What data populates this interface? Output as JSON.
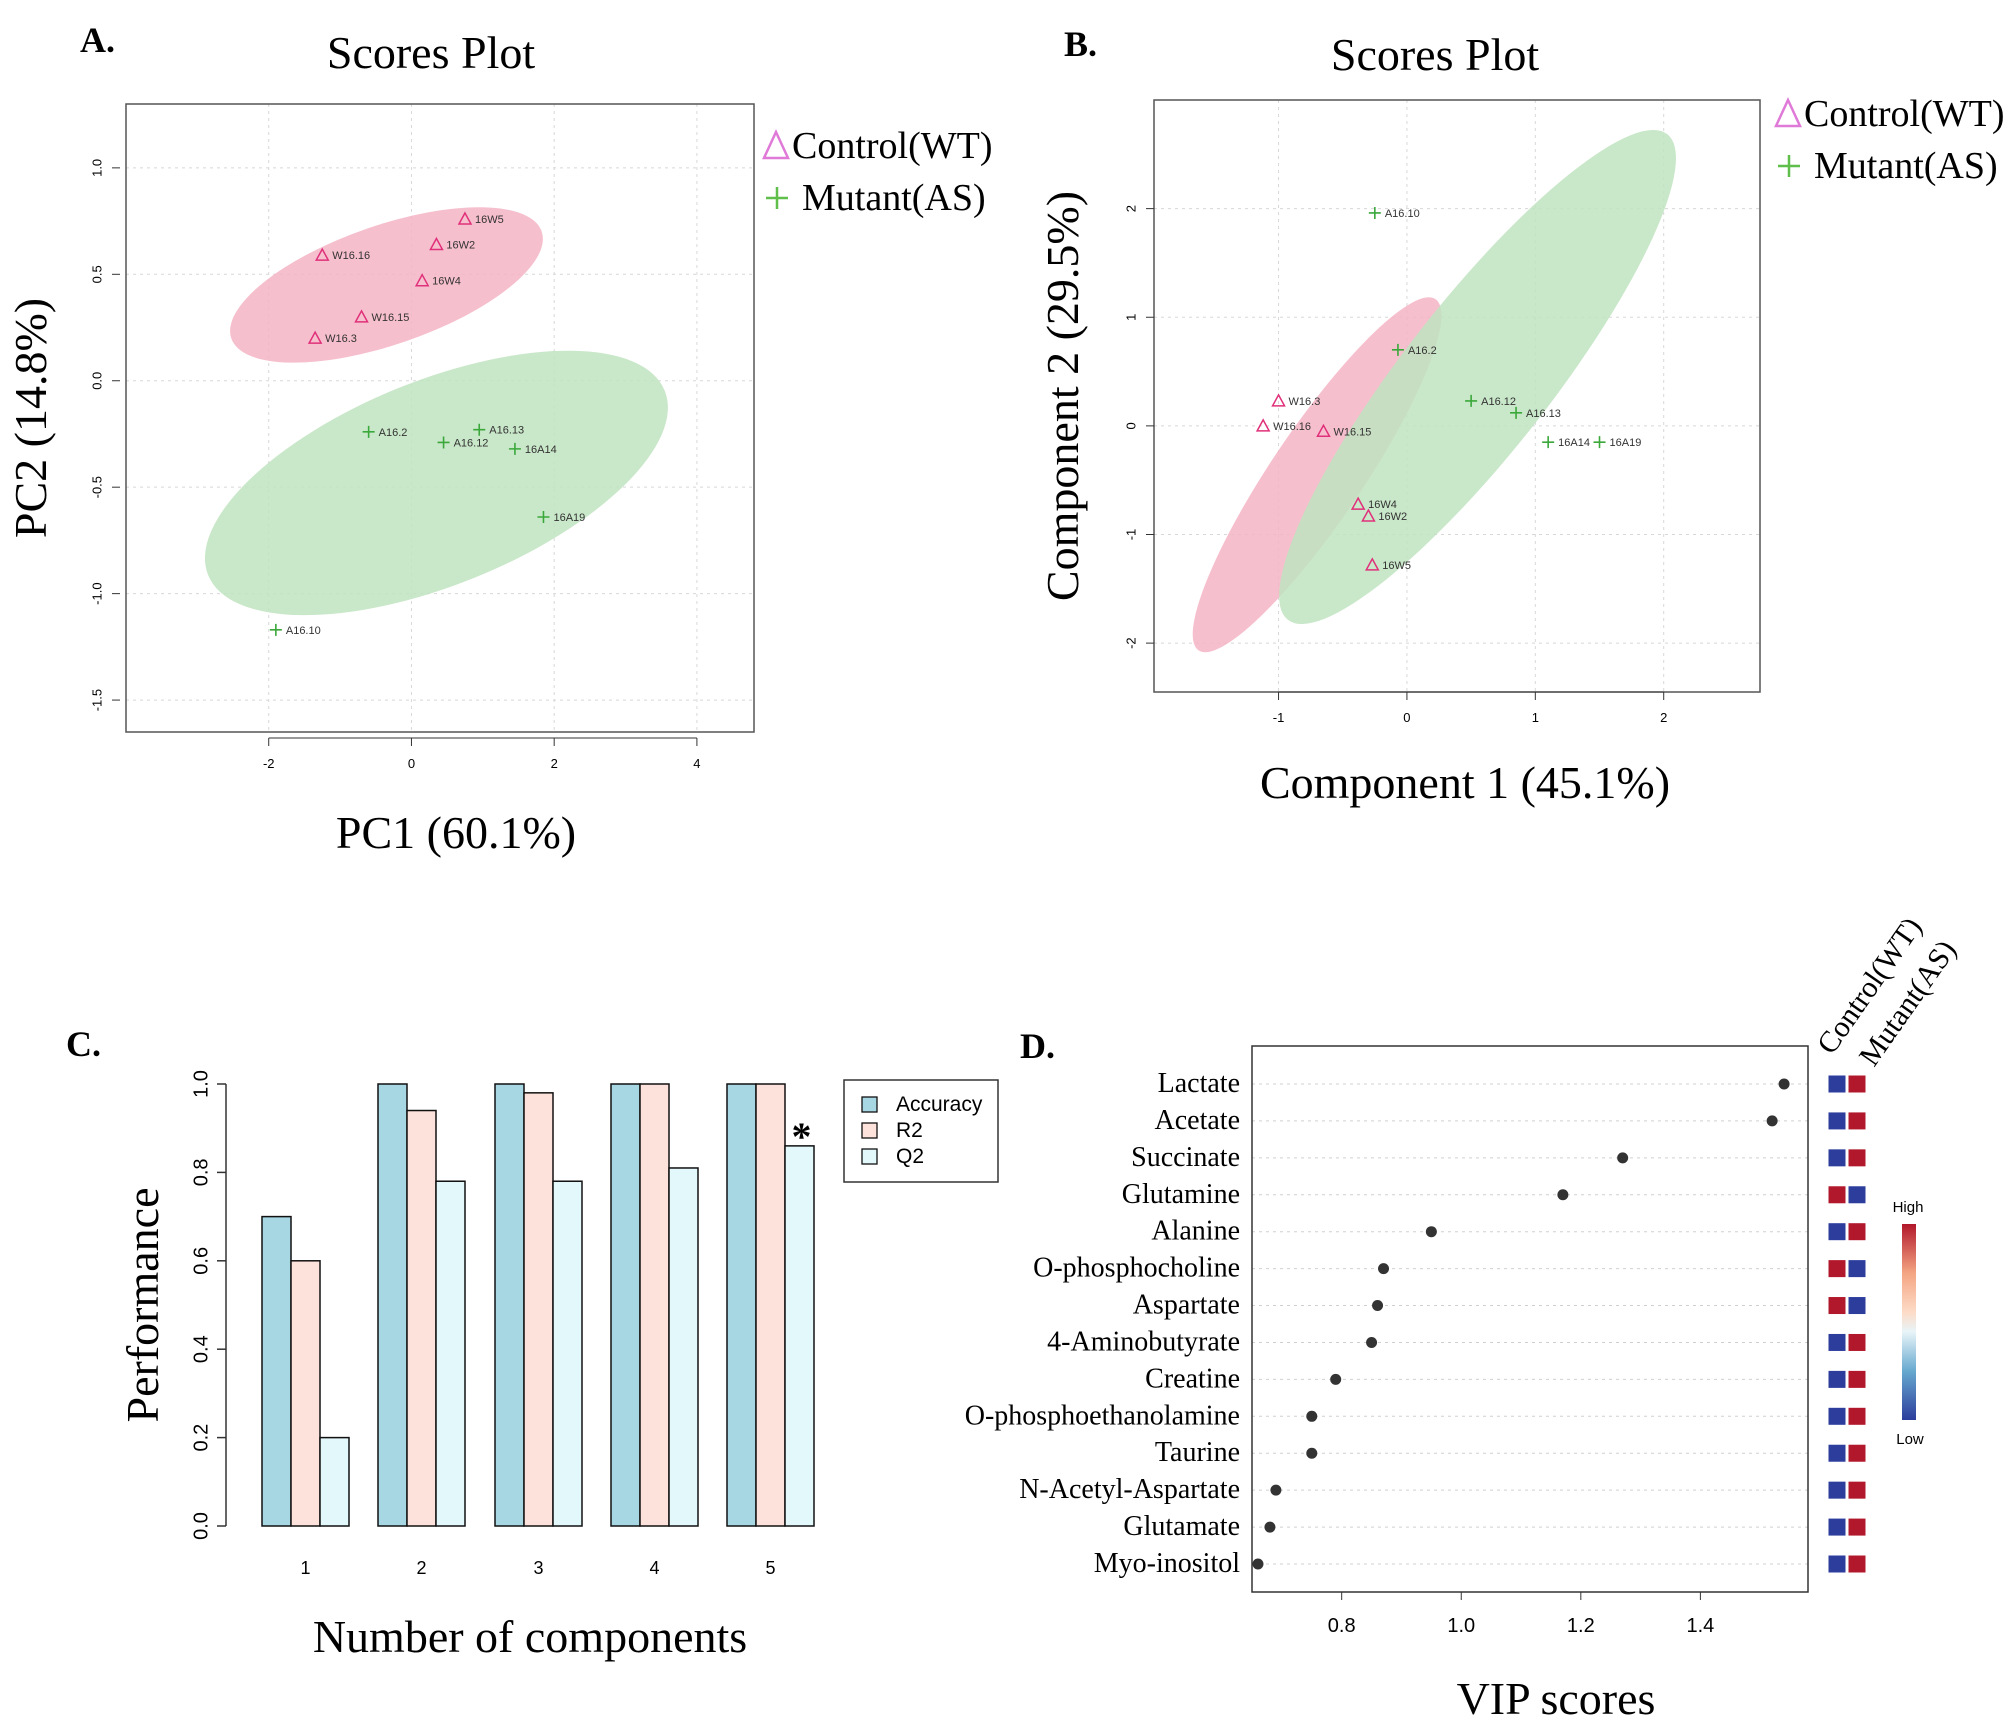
{
  "panels": {
    "a": {
      "label": "A."
    },
    "b": {
      "label": "B."
    },
    "c": {
      "label": "C."
    },
    "d": {
      "label": "D."
    }
  },
  "colors": {
    "control": "#e0307a",
    "control_ellipse": "#f4b4c4",
    "mutant": "#3aa83a",
    "mutant_ellipse": "#bfe3bf",
    "legend_triangle": "#e07ad8",
    "legend_plus": "#5fbf4a",
    "bar_accuracy": "#a7d7e2",
    "bar_r2": "#fde2dc",
    "bar_q2": "#e2f8fb",
    "heat_high": "#b2182b",
    "heat_low": "#2c3d9c"
  },
  "chart_data": [
    {
      "type": "scatter",
      "title": "Scores Plot",
      "xlabel": "PC1 (60.1%)",
      "ylabel": "PC2 (14.8%)",
      "xlim": [
        -4,
        4.8
      ],
      "ylim": [
        -1.65,
        1.3
      ],
      "xticks": [
        -2,
        0,
        2,
        4
      ],
      "yticks": [
        -1.5,
        -1.0,
        -0.5,
        0.0,
        0.5,
        1.0
      ],
      "xtick_labels": [
        "-2",
        "0",
        "2",
        "4"
      ],
      "ytick_labels": [
        "-1.5",
        "-1.0",
        "-0.5",
        "0.0",
        "0.5",
        "1.0"
      ],
      "grid": true,
      "legend": {
        "placement": "outside-right",
        "entries": [
          "Control(WT)",
          "Mutant(AS)"
        ]
      },
      "series": [
        {
          "name": "Control(WT)",
          "marker": "triangle",
          "points": [
            {
              "label": "16W5",
              "x": 0.75,
              "y": 0.76
            },
            {
              "label": "16W2",
              "x": 0.35,
              "y": 0.64
            },
            {
              "label": "W16.16",
              "x": -1.25,
              "y": 0.59
            },
            {
              "label": "16W4",
              "x": 0.15,
              "y": 0.47
            },
            {
              "label": "W16.15",
              "x": -0.7,
              "y": 0.3
            },
            {
              "label": "W16.3",
              "x": -1.35,
              "y": 0.2
            }
          ],
          "ellipse": {
            "cx": -0.35,
            "cy": 0.45,
            "rx": 2.3,
            "ry": 0.28,
            "angle_deg": -19
          }
        },
        {
          "name": "Mutant(AS)",
          "marker": "plus",
          "points": [
            {
              "label": "A16.2",
              "x": -0.6,
              "y": -0.24
            },
            {
              "label": "A16.13",
              "x": 0.95,
              "y": -0.23
            },
            {
              "label": "A16.12",
              "x": 0.45,
              "y": -0.29
            },
            {
              "label": "16A14",
              "x": 1.45,
              "y": -0.32
            },
            {
              "label": "16A19",
              "x": 1.85,
              "y": -0.64
            },
            {
              "label": "A16.10",
              "x": -1.9,
              "y": -1.17
            }
          ],
          "ellipse": {
            "cx": 0.35,
            "cy": -0.48,
            "rx": 3.45,
            "ry": 0.48,
            "angle_deg": -22
          }
        }
      ]
    },
    {
      "type": "scatter",
      "title": "Scores Plot",
      "xlabel": "Component 1 (45.1%)",
      "ylabel": "Component 2 (29.5%)",
      "xlim": [
        -1.97,
        2.75
      ],
      "ylim": [
        -2.45,
        3.0
      ],
      "xticks": [
        -1,
        0,
        1,
        2
      ],
      "yticks": [
        -2,
        -1,
        0,
        1,
        2
      ],
      "xtick_labels": [
        "-1",
        "0",
        "1",
        "2"
      ],
      "ytick_labels": [
        "-2",
        "-1",
        "0",
        "1",
        "2"
      ],
      "grid": true,
      "legend": {
        "placement": "outside-right",
        "entries": [
          "Control(WT)",
          "Mutant(AS)"
        ]
      },
      "series": [
        {
          "name": "Control(WT)",
          "marker": "triangle",
          "points": [
            {
              "label": "W16.3",
              "x": -1.0,
              "y": 0.23
            },
            {
              "label": "W16.16",
              "x": -1.12,
              "y": 0.0
            },
            {
              "label": "W16.15",
              "x": -0.65,
              "y": -0.05
            },
            {
              "label": "16W4",
              "x": -0.38,
              "y": -0.72
            },
            {
              "label": "16W2",
              "x": -0.3,
              "y": -0.83
            },
            {
              "label": "16W5",
              "x": -0.27,
              "y": -1.28
            }
          ],
          "ellipse": {
            "cx": -0.7,
            "cy": -0.45,
            "rx": 1.65,
            "ry": 0.42,
            "angle_deg": -56
          }
        },
        {
          "name": "Mutant(AS)",
          "marker": "plus",
          "points": [
            {
              "label": "A16.10",
              "x": -0.25,
              "y": 1.96
            },
            {
              "label": "A16.2",
              "x": -0.07,
              "y": 0.7
            },
            {
              "label": "A16.12",
              "x": 0.5,
              "y": 0.23
            },
            {
              "label": "A16.13",
              "x": 0.85,
              "y": 0.12
            },
            {
              "label": "16A14",
              "x": 1.1,
              "y": -0.15
            },
            {
              "label": "16A19",
              "x": 1.5,
              "y": -0.15
            }
          ],
          "ellipse": {
            "cx": 0.55,
            "cy": 0.45,
            "rx": 2.4,
            "ry": 0.68,
            "angle_deg": -52
          }
        }
      ]
    },
    {
      "type": "bar",
      "xlabel": "Number of components",
      "ylabel": "Performance",
      "categories": [
        "1",
        "2",
        "3",
        "4",
        "5"
      ],
      "ylim": [
        0,
        1.0
      ],
      "yticks": [
        0.0,
        0.2,
        0.4,
        0.6,
        0.8,
        1.0
      ],
      "ytick_labels": [
        "0.0",
        "0.2",
        "0.4",
        "0.6",
        "0.8",
        "1.0"
      ],
      "legend": {
        "placement": "top-right",
        "entries": [
          "Accuracy",
          "R2",
          "Q2"
        ]
      },
      "annotation": {
        "text": "*",
        "category": "5",
        "series": "Q2"
      },
      "series": [
        {
          "name": "Accuracy",
          "values": [
            0.7,
            1.0,
            1.0,
            1.0,
            1.0
          ]
        },
        {
          "name": "R2",
          "values": [
            0.6,
            0.94,
            0.98,
            1.0,
            1.0
          ]
        },
        {
          "name": "Q2",
          "values": [
            0.2,
            0.78,
            0.78,
            0.81,
            0.86
          ]
        }
      ]
    },
    {
      "type": "scatter",
      "xlabel": "VIP scores",
      "xlim": [
        0.65,
        1.58
      ],
      "xticks": [
        0.8,
        1.0,
        1.2,
        1.4
      ],
      "xtick_labels": [
        "0.8",
        "1.0",
        "1.2",
        "1.4"
      ],
      "grid": true,
      "heatmap_columns": [
        "Control(WT)",
        "Mutant(AS)"
      ],
      "colorbar": {
        "high_label": "High",
        "low_label": "Low"
      },
      "items": [
        {
          "name": "Lactate",
          "vip": 1.54,
          "control": "low",
          "mutant": "high"
        },
        {
          "name": "Acetate",
          "vip": 1.52,
          "control": "low",
          "mutant": "high"
        },
        {
          "name": "Succinate",
          "vip": 1.27,
          "control": "low",
          "mutant": "high"
        },
        {
          "name": "Glutamine",
          "vip": 1.17,
          "control": "high",
          "mutant": "low"
        },
        {
          "name": "Alanine",
          "vip": 0.95,
          "control": "low",
          "mutant": "high"
        },
        {
          "name": "O-phosphocholine",
          "vip": 0.87,
          "control": "high",
          "mutant": "low"
        },
        {
          "name": "Aspartate",
          "vip": 0.86,
          "control": "high",
          "mutant": "low"
        },
        {
          "name": "4-Aminobutyrate",
          "vip": 0.85,
          "control": "low",
          "mutant": "high"
        },
        {
          "name": "Creatine",
          "vip": 0.79,
          "control": "low",
          "mutant": "high"
        },
        {
          "name": "O-phosphoethanolamine",
          "vip": 0.75,
          "control": "low",
          "mutant": "high"
        },
        {
          "name": "Taurine",
          "vip": 0.75,
          "control": "low",
          "mutant": "high"
        },
        {
          "name": "N-Acetyl-Aspartate",
          "vip": 0.69,
          "control": "low",
          "mutant": "high"
        },
        {
          "name": "Glutamate",
          "vip": 0.68,
          "control": "low",
          "mutant": "high"
        },
        {
          "name": "Myo-inositol",
          "vip": 0.66,
          "control": "low",
          "mutant": "high"
        }
      ]
    }
  ]
}
